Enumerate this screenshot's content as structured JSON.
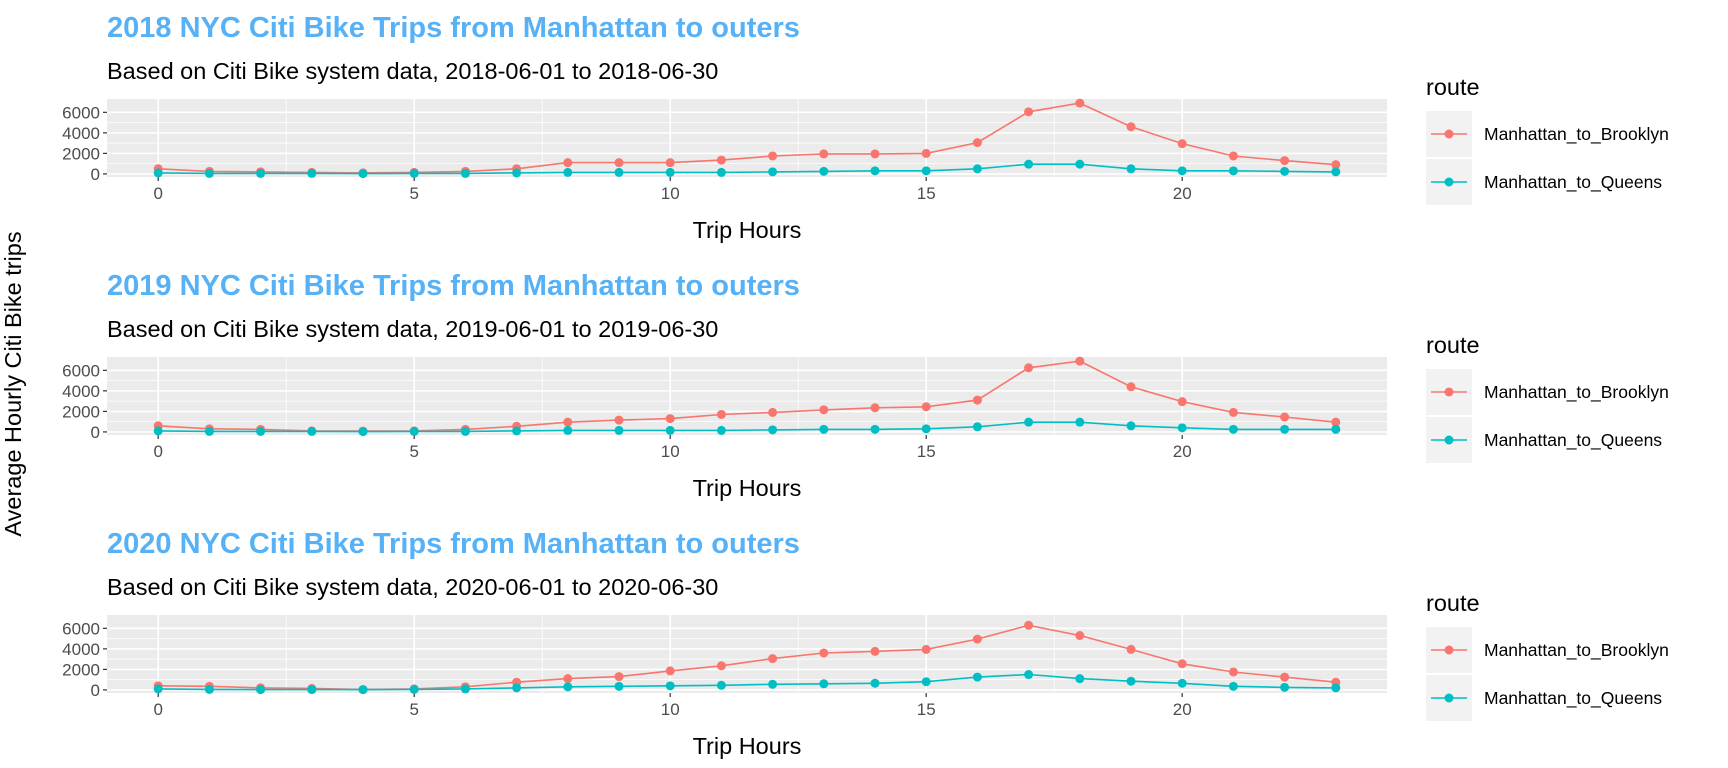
{
  "y_axis_label": "Average Hourly Citi Bike trips",
  "colors": {
    "title": "#56B1F7",
    "brooklyn": "#F8766D",
    "queens": "#00BFC4",
    "panel_bg": "#EBEBEB",
    "grid": "#FFFFFF",
    "legend_key_bg": "#F2F2F2"
  },
  "chart_data": [
    {
      "type": "line",
      "title": "2018 NYC Citi Bike Trips from Manhattan to outers",
      "subtitle": "Based on Citi Bike system data,  2018-06-01 to 2018-06-30",
      "xlabel": "Trip Hours",
      "ylabel": "Average Hourly Citi Bike trips",
      "x_ticks": [
        0,
        5,
        10,
        15,
        20
      ],
      "y_ticks": [
        0,
        2000,
        4000,
        6000
      ],
      "xlim": [
        -1,
        24
      ],
      "ylim": [
        -300,
        7300
      ],
      "grid": true,
      "legend": {
        "title": "route",
        "position": "right"
      },
      "x": [
        0,
        1,
        2,
        3,
        4,
        5,
        6,
        7,
        8,
        9,
        10,
        11,
        12,
        13,
        14,
        15,
        16,
        17,
        18,
        19,
        20,
        21,
        22,
        23
      ],
      "series": [
        {
          "name": "Manhattan_to_Brooklyn",
          "values": [
            500,
            250,
            200,
            150,
            100,
            150,
            250,
            500,
            1100,
            1100,
            1100,
            1350,
            1750,
            1950,
            1950,
            2000,
            3050,
            6050,
            6900,
            4600,
            2950,
            1750,
            1300,
            900
          ]
        },
        {
          "name": "Manhattan_to_Queens",
          "values": [
            100,
            50,
            50,
            50,
            30,
            50,
            50,
            100,
            150,
            150,
            150,
            150,
            200,
            250,
            300,
            300,
            500,
            950,
            950,
            500,
            300,
            300,
            250,
            200
          ]
        }
      ]
    },
    {
      "type": "line",
      "title": "2019 NYC Citi Bike Trips from Manhattan to outers",
      "subtitle": "Based on Citi Bike system data,  2019-06-01 to 2019-06-30",
      "xlabel": "Trip Hours",
      "ylabel": "Average Hourly Citi Bike trips",
      "x_ticks": [
        0,
        5,
        10,
        15,
        20
      ],
      "y_ticks": [
        0,
        2000,
        4000,
        6000
      ],
      "xlim": [
        -1,
        24
      ],
      "ylim": [
        -300,
        7300
      ],
      "grid": true,
      "legend": {
        "title": "route",
        "position": "right"
      },
      "x": [
        0,
        1,
        2,
        3,
        4,
        5,
        6,
        7,
        8,
        9,
        10,
        11,
        12,
        13,
        14,
        15,
        16,
        17,
        18,
        19,
        20,
        21,
        22,
        23
      ],
      "series": [
        {
          "name": "Manhattan_to_Brooklyn",
          "values": [
            600,
            300,
            250,
            100,
            80,
            100,
            250,
            550,
            950,
            1150,
            1300,
            1700,
            1900,
            2150,
            2350,
            2450,
            3100,
            6250,
            6900,
            4400,
            2950,
            1900,
            1450,
            950
          ]
        },
        {
          "name": "Manhattan_to_Queens",
          "values": [
            100,
            50,
            50,
            50,
            30,
            50,
            50,
            100,
            150,
            150,
            150,
            150,
            200,
            250,
            250,
            300,
            500,
            950,
            950,
            600,
            400,
            250,
            250,
            250
          ]
        }
      ]
    },
    {
      "type": "line",
      "title": "2020 NYC Citi Bike Trips from Manhattan to outers",
      "subtitle": "Based on Citi Bike system data,  2020-06-01 to 2020-06-30",
      "xlabel": "Trip Hours",
      "ylabel": "Average Hourly Citi Bike trips",
      "x_ticks": [
        0,
        5,
        10,
        15,
        20
      ],
      "y_ticks": [
        0,
        2000,
        4000,
        6000
      ],
      "xlim": [
        -1,
        24
      ],
      "ylim": [
        -300,
        7300
      ],
      "grid": true,
      "legend": {
        "title": "route",
        "position": "right"
      },
      "x": [
        0,
        1,
        2,
        3,
        4,
        5,
        6,
        7,
        8,
        9,
        10,
        11,
        12,
        13,
        14,
        15,
        16,
        17,
        18,
        19,
        20,
        21,
        22,
        23
      ],
      "series": [
        {
          "name": "Manhattan_to_Brooklyn",
          "values": [
            400,
            350,
            200,
            150,
            30,
            100,
            300,
            750,
            1100,
            1300,
            1850,
            2350,
            3050,
            3600,
            3750,
            3950,
            4950,
            6300,
            5300,
            3950,
            2550,
            1750,
            1250,
            750
          ]
        },
        {
          "name": "Manhattan_to_Queens",
          "values": [
            100,
            50,
            30,
            30,
            30,
            50,
            100,
            200,
            300,
            350,
            400,
            450,
            550,
            600,
            650,
            800,
            1250,
            1500,
            1100,
            850,
            650,
            350,
            250,
            200
          ]
        }
      ]
    }
  ]
}
